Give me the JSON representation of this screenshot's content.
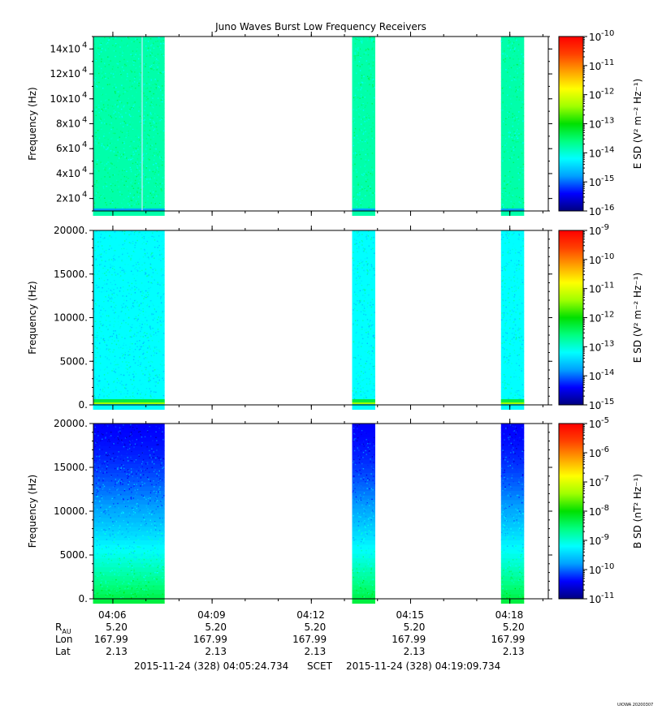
{
  "title": "Juno Waves Burst Low Frequency Receivers",
  "stamp": "UIOWA 20200307",
  "colors": {
    "ramp": [
      "#00007f",
      "#0000ff",
      "#00a0ff",
      "#00ffff",
      "#00ff80",
      "#00e000",
      "#a0ff00",
      "#ffff00",
      "#ffa000",
      "#ff4000",
      "#ff0000"
    ]
  },
  "panels": [
    {
      "id": "esd-high",
      "ylabel": "Frequency (Hz)",
      "cbar_label": "E SD (V² m⁻² Hz⁻¹)",
      "cbar_exponents": [
        "-10",
        "-11",
        "-12",
        "-13",
        "-14",
        "-15",
        "-16"
      ],
      "ylim": [
        10000,
        150000
      ],
      "y_ticks": [
        {
          "value": 140000,
          "mant": "14×10",
          "exp": "4"
        },
        {
          "value": 120000,
          "mant": "12×10",
          "exp": "4"
        },
        {
          "value": 100000,
          "mant": "10×10",
          "exp": "4"
        },
        {
          "value": 80000,
          "mant": "8×10",
          "exp": "4"
        },
        {
          "value": 60000,
          "mant": "6×10",
          "exp": "4"
        },
        {
          "value": 40000,
          "mant": "4×10",
          "exp": "4"
        },
        {
          "value": 20000,
          "mant": "2×10",
          "exp": "4"
        }
      ]
    },
    {
      "id": "esd-low",
      "ylabel": "Frequency (Hz)",
      "cbar_label": "E SD (V² m⁻² Hz⁻¹)",
      "cbar_exponents": [
        "-9",
        "-10",
        "-11",
        "-12",
        "-13",
        "-14",
        "-15"
      ],
      "ylim": [
        0,
        20000
      ],
      "y_ticks": [
        {
          "value": 20000,
          "label": "20000."
        },
        {
          "value": 15000,
          "label": "15000."
        },
        {
          "value": 10000,
          "label": "10000."
        },
        {
          "value": 5000,
          "label": "5000."
        },
        {
          "value": 0,
          "label": "0."
        }
      ]
    },
    {
      "id": "bsd",
      "ylabel": "Frequency (Hz)",
      "cbar_label": "B SD (nT² Hz⁻¹)",
      "cbar_exponents": [
        "-5",
        "-6",
        "-7",
        "-8",
        "-9",
        "-10",
        "-11"
      ],
      "ylim": [
        0,
        20000
      ],
      "y_ticks": [
        {
          "value": 20000,
          "label": "20000."
        },
        {
          "value": 15000,
          "label": "15000."
        },
        {
          "value": 10000,
          "label": "10000."
        },
        {
          "value": 5000,
          "label": "5000."
        },
        {
          "value": 0,
          "label": "0."
        }
      ]
    }
  ],
  "chart_data": {
    "type": "heatmap",
    "title": "Juno Waves Burst Low Frequency Receivers",
    "x_axis": "SCET",
    "xlim": [
      "04:05:24.734",
      "04:19:09.734"
    ],
    "x_ticks": [
      "04:06",
      "04:09",
      "04:12",
      "04:15",
      "04:18"
    ],
    "data_intervals": [
      {
        "start": "04:05:24",
        "end": "04:07:34"
      },
      {
        "start": "04:13:14",
        "end": "04:13:56"
      },
      {
        "start": "04:17:44",
        "end": "04:18:26"
      }
    ],
    "panels": [
      {
        "ylabel": "Frequency (Hz)",
        "ylim": [
          10000,
          150000
        ],
        "colorbar": "E SD (V² m⁻² Hz⁻¹)",
        "colorbar_range_exponents": [
          -16,
          -10
        ],
        "typical_exponent": -13.8
      },
      {
        "ylabel": "Frequency (Hz)",
        "ylim": [
          0,
          20000
        ],
        "colorbar": "E SD (V² m⁻² Hz⁻¹)",
        "colorbar_range_exponents": [
          -15,
          -9
        ],
        "typical_exponent": -13.2
      },
      {
        "ylabel": "Frequency (Hz)",
        "ylim": [
          0,
          20000
        ],
        "colorbar": "B SD (nT² Hz⁻¹)",
        "colorbar_range_exponents": [
          -11,
          -5
        ],
        "typical_exponent_low_freq": -8.3,
        "typical_exponent_high_freq": -10.4
      }
    ],
    "ephemeris": {
      "rows": [
        {
          "label": "R",
          "sub": "AU",
          "values": [
            "5.20",
            "5.20",
            "5.20",
            "5.20",
            "5.20"
          ]
        },
        {
          "label": "Lon",
          "values": [
            "167.99",
            "167.99",
            "167.99",
            "167.99",
            "167.99"
          ]
        },
        {
          "label": "Lat",
          "values": [
            "2.13",
            "2.13",
            "2.13",
            "2.13",
            "2.13"
          ]
        }
      ]
    },
    "time_range": {
      "start": "2015-11-24 (328) 04:05:24.734",
      "frame": "SCET",
      "end": "2015-11-24 (328) 04:19:09.734"
    }
  }
}
